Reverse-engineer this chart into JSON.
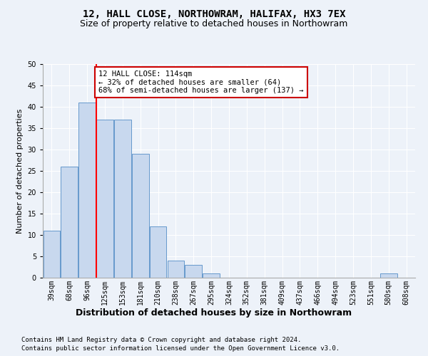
{
  "title1": "12, HALL CLOSE, NORTHOWRAM, HALIFAX, HX3 7EX",
  "title2": "Size of property relative to detached houses in Northowram",
  "xlabel": "Distribution of detached houses by size in Northowram",
  "ylabel": "Number of detached properties",
  "bin_labels": [
    "39sqm",
    "68sqm",
    "96sqm",
    "125sqm",
    "153sqm",
    "181sqm",
    "210sqm",
    "238sqm",
    "267sqm",
    "295sqm",
    "324sqm",
    "352sqm",
    "381sqm",
    "409sqm",
    "437sqm",
    "466sqm",
    "494sqm",
    "523sqm",
    "551sqm",
    "580sqm",
    "608sqm"
  ],
  "bar_values": [
    11,
    26,
    41,
    37,
    37,
    29,
    12,
    4,
    3,
    1,
    0,
    0,
    0,
    0,
    0,
    0,
    0,
    0,
    0,
    1,
    0
  ],
  "bar_color": "#c8d8ee",
  "bar_edge_color": "#6699cc",
  "annotation_text": "12 HALL CLOSE: 114sqm\n← 32% of detached houses are smaller (64)\n68% of semi-detached houses are larger (137) →",
  "annotation_box_color": "#ffffff",
  "annotation_box_edge_color": "#cc0000",
  "ylim": [
    0,
    50
  ],
  "yticks": [
    0,
    5,
    10,
    15,
    20,
    25,
    30,
    35,
    40,
    45,
    50
  ],
  "footnote1": "Contains HM Land Registry data © Crown copyright and database right 2024.",
  "footnote2": "Contains public sector information licensed under the Open Government Licence v3.0.",
  "background_color": "#edf2f9",
  "grid_color": "#ffffff",
  "title1_fontsize": 10,
  "title2_fontsize": 9,
  "xlabel_fontsize": 9,
  "ylabel_fontsize": 8,
  "tick_fontsize": 7,
  "annotation_fontsize": 7.5,
  "footnote_fontsize": 6.5,
  "line_x_index": 2.5
}
